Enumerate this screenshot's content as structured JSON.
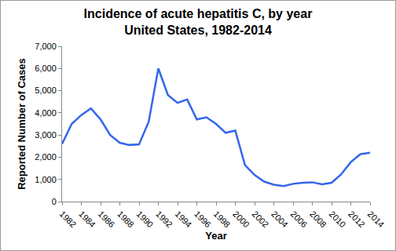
{
  "chart_data": {
    "type": "line",
    "title": "Incidence of acute hepatitis C, by year",
    "subtitle": "United States, 1982-2014",
    "x_label": "Year",
    "y_label": "Reported Number of Cases",
    "x": [
      1982,
      1983,
      1984,
      1985,
      1986,
      1987,
      1988,
      1989,
      1990,
      1991,
      1992,
      1993,
      1994,
      1995,
      1996,
      1997,
      1998,
      1999,
      2000,
      2001,
      2002,
      2003,
      2004,
      2005,
      2006,
      2007,
      2008,
      2009,
      2010,
      2011,
      2012,
      2013,
      2014
    ],
    "values": [
      2600,
      3500,
      3900,
      4200,
      3700,
      3000,
      2650,
      2550,
      2580,
      3600,
      6000,
      4800,
      4450,
      4600,
      3700,
      3800,
      3500,
      3100,
      3200,
      1650,
      1200,
      900,
      760,
      700,
      800,
      850,
      870,
      780,
      850,
      1230,
      1780,
      2140,
      2200
    ],
    "color": "#3366ee",
    "xlim": [
      1982,
      2014
    ],
    "xticks": [
      1982,
      1984,
      1986,
      1988,
      1990,
      1992,
      1994,
      1996,
      1998,
      2000,
      2002,
      2004,
      2006,
      2008,
      2010,
      2012,
      2014
    ],
    "ylim": [
      0,
      7000
    ],
    "yticks": [
      0,
      {
        "value": 1000,
        "label": "1,000"
      },
      {
        "value": 2000,
        "label": "2,000"
      },
      {
        "value": 3000,
        "label": "3,000"
      },
      {
        "value": 4000,
        "label": "4,000"
      },
      {
        "value": 5000,
        "label": "5,000"
      },
      {
        "value": 6000,
        "label": "6,000"
      },
      {
        "value": 7000,
        "label": "7,000"
      }
    ],
    "grid": false
  }
}
